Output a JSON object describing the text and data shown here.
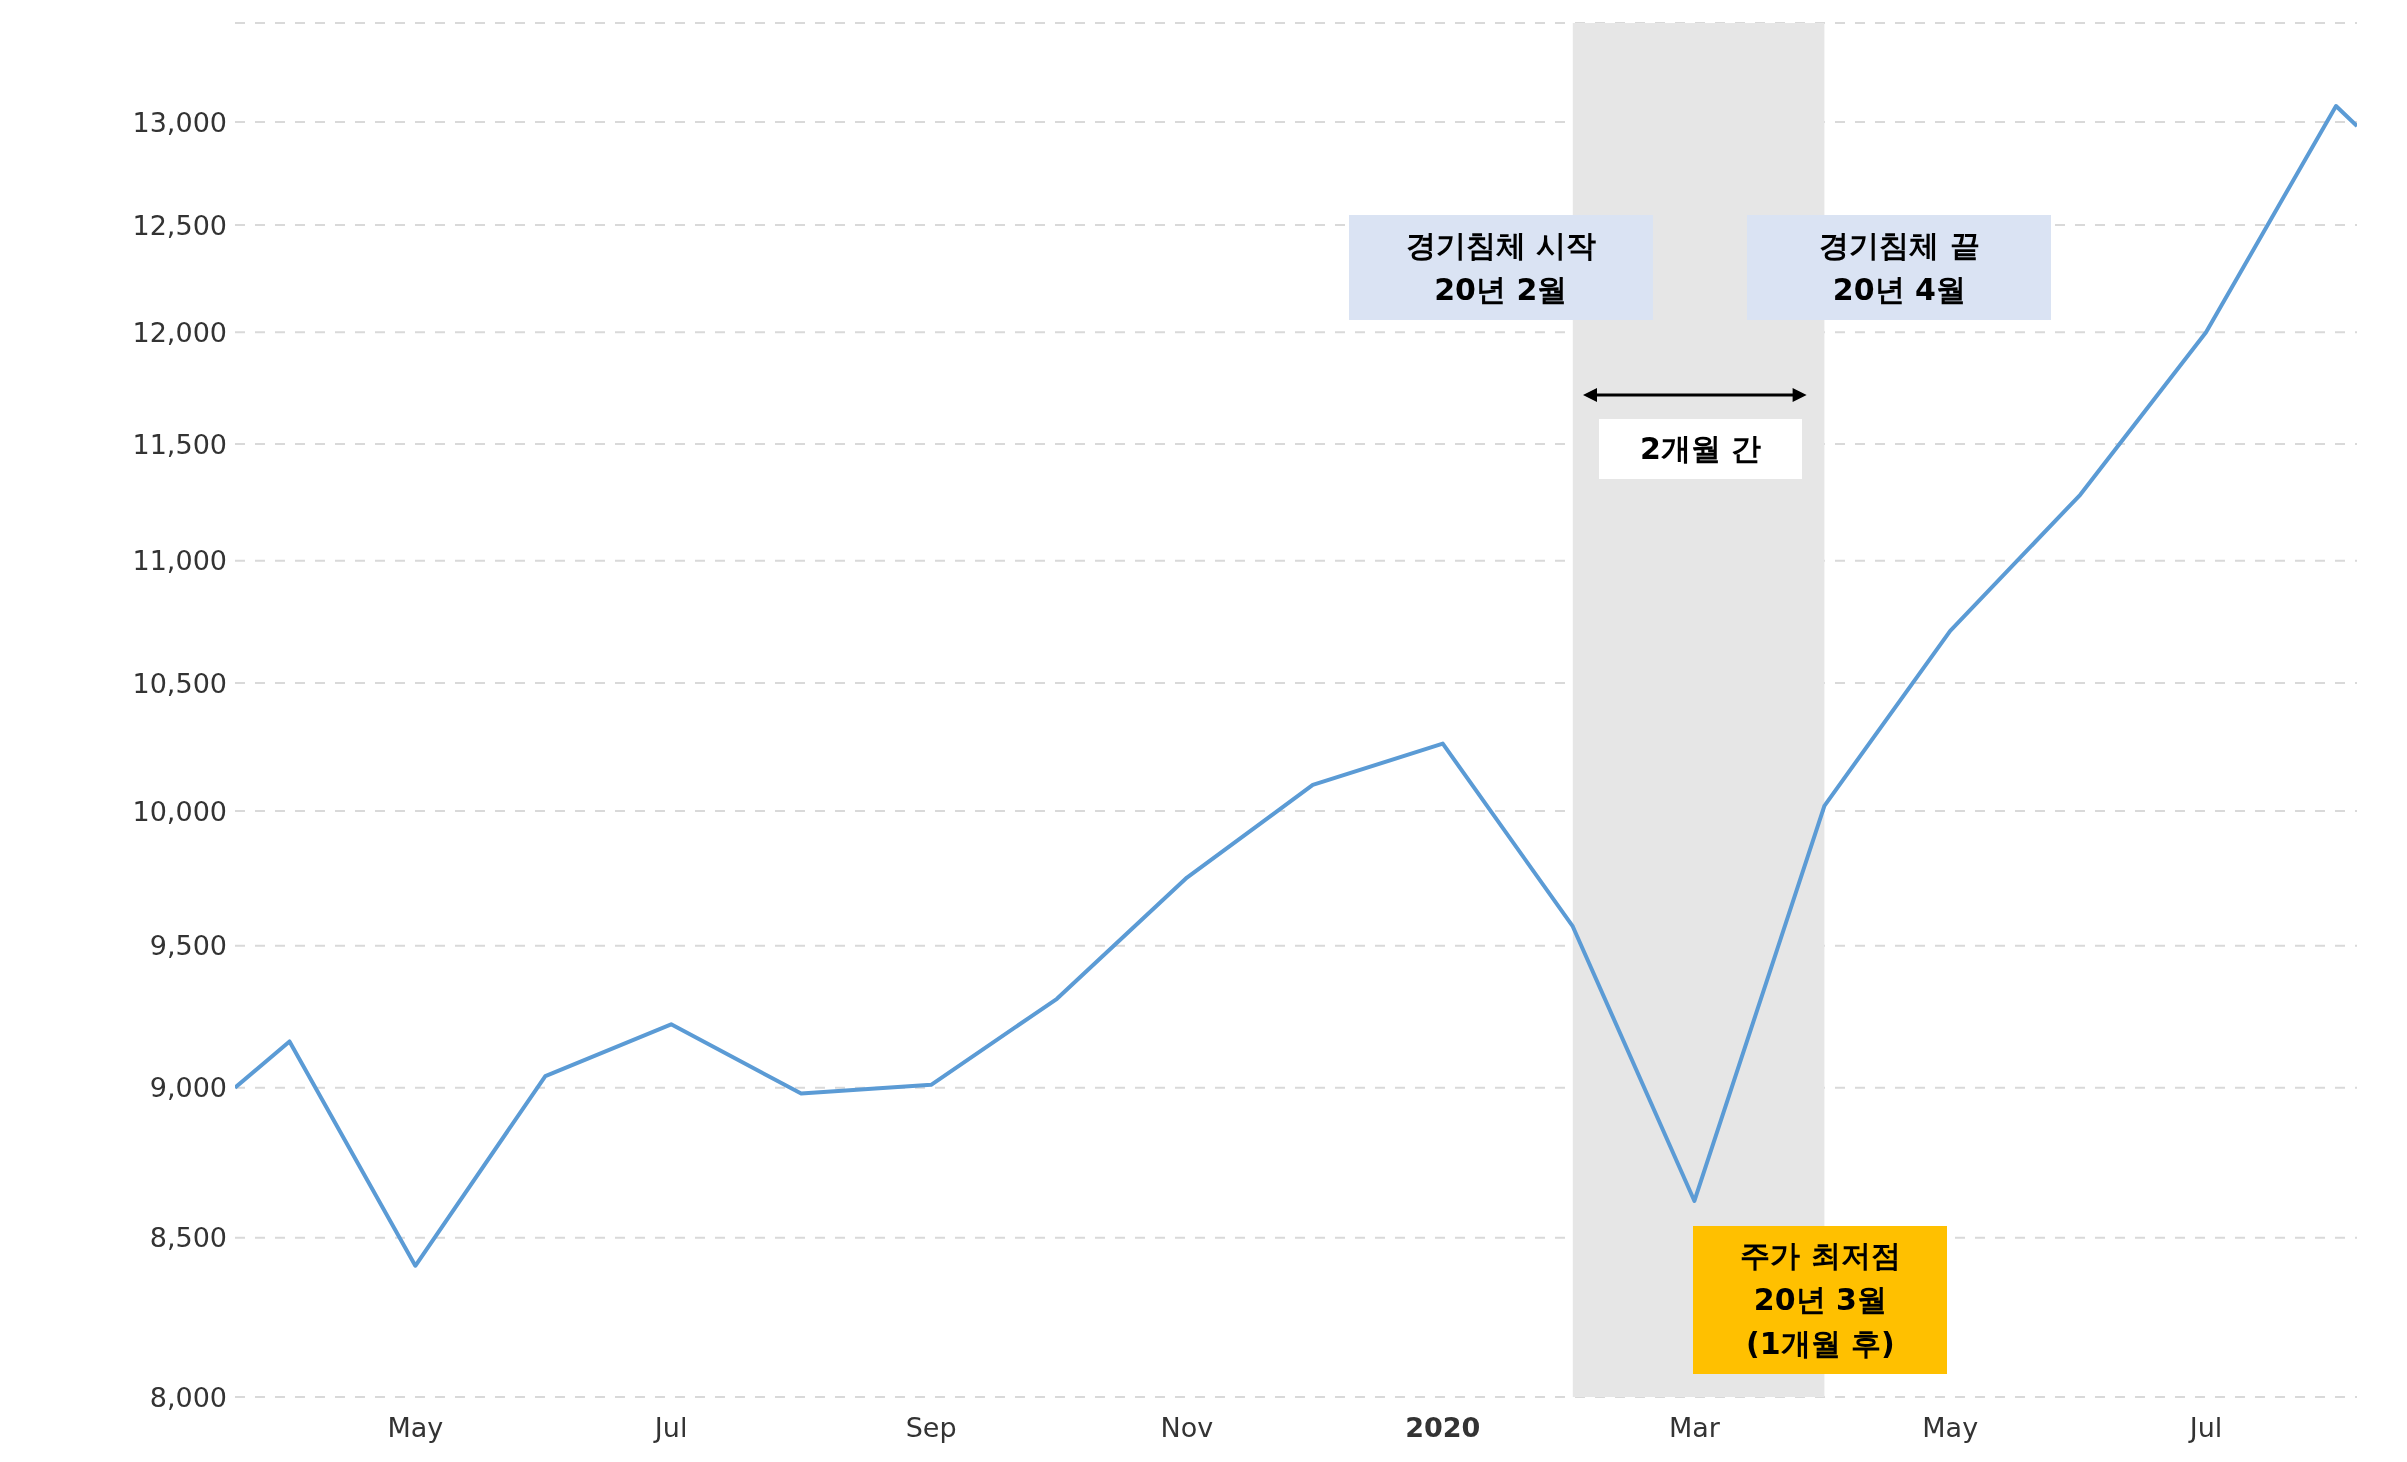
{
  "chart_data": {
    "type": "line",
    "log": "y",
    "grid": "y",
    "x": [
      "2019-03-19",
      "2019-04-01",
      "2019-05-01",
      "2019-06-01",
      "2019-07-01",
      "2019-08-01",
      "2019-09-01",
      "2019-10-01",
      "2019-11-01",
      "2019-12-01",
      "2020-01-01",
      "2020-02-01",
      "2020-03-01",
      "2020-04-01",
      "2020-05-01",
      "2020-06-01",
      "2020-07-01",
      "2020-08-01",
      "2020-08-06"
    ],
    "series": [
      {
        "color": "#5b9bd5",
        "values": [
          9000,
          9160,
          8410,
          9040,
          9220,
          8980,
          9010,
          9310,
          9750,
          10100,
          10260,
          9570,
          8620,
          10020,
          10710,
          11280,
          12000,
          13080,
          12980
        ]
      }
    ],
    "xlim": [
      "2019-03-19",
      "2020-08-06"
    ],
    "xticks": [
      {
        "value": "2019-05-01",
        "label": "May"
      },
      {
        "value": "2019-07-01",
        "label": "Jul"
      },
      {
        "value": "2019-09-01",
        "label": "Sep"
      },
      {
        "value": "2019-11-01",
        "label": "Nov"
      },
      {
        "value": "2020-01-01",
        "label": "2020"
      },
      {
        "value": "2020-03-01",
        "label": "Mar"
      },
      {
        "value": "2020-05-01",
        "label": "May"
      },
      {
        "value": "2020-07-01",
        "label": "Jul"
      }
    ],
    "ylim": [
      8000,
      13500
    ],
    "yticks": [
      {
        "value": 8000,
        "label": "8,000"
      },
      {
        "value": 8500,
        "label": "8,500"
      },
      {
        "value": 9000,
        "label": "9,000"
      },
      {
        "value": 9500,
        "label": "9,500"
      },
      {
        "value": 10000,
        "label": "10,000"
      },
      {
        "value": 10500,
        "label": "10,500"
      },
      {
        "value": 11000,
        "label": "11,000"
      },
      {
        "value": 11500,
        "label": "11,500"
      },
      {
        "value": 12000,
        "label": "12,000"
      },
      {
        "value": 12500,
        "label": "12,500"
      },
      {
        "value": 13000,
        "label": "13,000"
      }
    ],
    "bands": [
      {
        "axis": "x",
        "from": "2020-02-01",
        "to": "2020-04-01",
        "color": "#e6e6e6"
      }
    ],
    "annotations": [
      "경기침체 시작\n20년 2월",
      "경기침체 끝\n20년 4월",
      "2개월 간",
      {
        "text": "주가 최저점\n20년 3월\n(1개월 후)",
        "x": "2020-03-01",
        "y": 8620
      }
    ]
  }
}
